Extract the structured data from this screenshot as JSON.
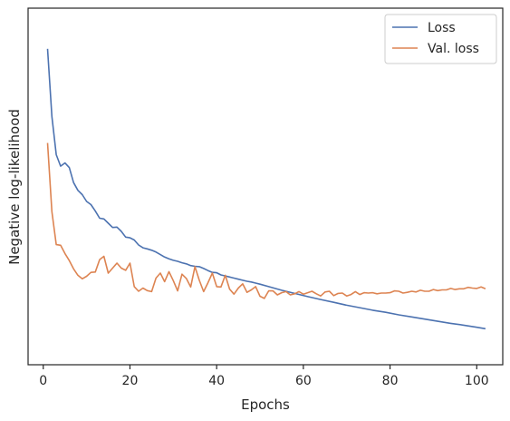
{
  "chart_data": {
    "type": "line",
    "xlabel": "Epochs",
    "ylabel": "Negative log-likelihood",
    "xlim": [
      -3.5,
      106
    ],
    "ylim": [
      0,
      1
    ],
    "xticks": [
      0,
      20,
      40,
      60,
      80,
      100
    ],
    "grid": false,
    "legend_position": "top-right",
    "y_tick_labels_shown": false,
    "series": [
      {
        "name": "Loss",
        "color": "#4c72b0",
        "x": [
          1,
          2,
          3,
          4,
          5,
          6,
          7,
          8,
          9,
          10,
          11,
          12,
          13,
          14,
          15,
          16,
          17,
          18,
          19,
          20,
          21,
          22,
          23,
          24,
          25,
          26,
          27,
          28,
          29,
          30,
          31,
          32,
          33,
          34,
          35,
          36,
          37,
          38,
          39,
          40,
          41,
          42,
          43,
          44,
          45,
          46,
          47,
          48,
          49,
          50,
          52,
          55,
          58,
          61,
          64,
          67,
          70,
          73,
          76,
          79,
          82,
          85,
          88,
          91,
          94,
          97,
          100,
          102
        ],
        "y": [
          0.886,
          0.696,
          0.589,
          0.557,
          0.566,
          0.553,
          0.511,
          0.489,
          0.477,
          0.458,
          0.449,
          0.431,
          0.411,
          0.409,
          0.397,
          0.385,
          0.386,
          0.374,
          0.358,
          0.356,
          0.35,
          0.336,
          0.328,
          0.325,
          0.321,
          0.316,
          0.309,
          0.302,
          0.297,
          0.293,
          0.29,
          0.286,
          0.283,
          0.278,
          0.276,
          0.275,
          0.27,
          0.264,
          0.259,
          0.258,
          0.252,
          0.249,
          0.246,
          0.243,
          0.24,
          0.237,
          0.234,
          0.232,
          0.229,
          0.226,
          0.219,
          0.209,
          0.2,
          0.191,
          0.183,
          0.175,
          0.167,
          0.16,
          0.153,
          0.147,
          0.14,
          0.134,
          0.128,
          0.122,
          0.116,
          0.111,
          0.105,
          0.101
        ]
      },
      {
        "name": "Val. loss",
        "color": "#dd8452",
        "x": [
          1,
          2,
          3,
          4,
          5,
          6,
          7,
          8,
          9,
          10,
          11,
          12,
          13,
          14,
          15,
          16,
          17,
          18,
          19,
          20,
          21,
          22,
          23,
          24,
          25,
          26,
          27,
          28,
          29,
          30,
          31,
          32,
          33,
          34,
          35,
          36,
          37,
          38,
          39,
          40,
          41,
          42,
          43,
          44,
          45,
          46,
          47,
          48,
          49,
          50,
          51,
          52,
          53,
          54,
          55,
          56,
          57,
          58,
          59,
          60,
          61,
          62,
          63,
          64,
          65,
          66,
          67,
          68,
          69,
          70,
          71,
          72,
          73,
          74,
          75,
          76,
          77,
          78,
          79,
          80,
          81,
          82,
          83,
          84,
          85,
          86,
          87,
          88,
          89,
          90,
          91,
          92,
          93,
          94,
          95,
          96,
          97,
          98,
          99,
          100,
          101,
          102
        ],
        "y": [
          0.622,
          0.429,
          0.337,
          0.335,
          0.312,
          0.292,
          0.269,
          0.251,
          0.241,
          0.248,
          0.259,
          0.26,
          0.295,
          0.304,
          0.257,
          0.271,
          0.285,
          0.271,
          0.265,
          0.285,
          0.219,
          0.206,
          0.215,
          0.208,
          0.205,
          0.243,
          0.257,
          0.233,
          0.261,
          0.236,
          0.207,
          0.254,
          0.242,
          0.218,
          0.275,
          0.237,
          0.205,
          0.23,
          0.257,
          0.219,
          0.218,
          0.251,
          0.212,
          0.198,
          0.215,
          0.227,
          0.203,
          0.21,
          0.219,
          0.192,
          0.186,
          0.207,
          0.207,
          0.196,
          0.202,
          0.205,
          0.196,
          0.199,
          0.205,
          0.198,
          0.202,
          0.206,
          0.199,
          0.193,
          0.204,
          0.206,
          0.194,
          0.2,
          0.201,
          0.193,
          0.197,
          0.205,
          0.197,
          0.202,
          0.201,
          0.202,
          0.199,
          0.201,
          0.201,
          0.202,
          0.207,
          0.206,
          0.201,
          0.203,
          0.206,
          0.204,
          0.209,
          0.206,
          0.206,
          0.211,
          0.208,
          0.21,
          0.21,
          0.214,
          0.211,
          0.213,
          0.213,
          0.217,
          0.215,
          0.214,
          0.218,
          0.213
        ]
      }
    ]
  }
}
